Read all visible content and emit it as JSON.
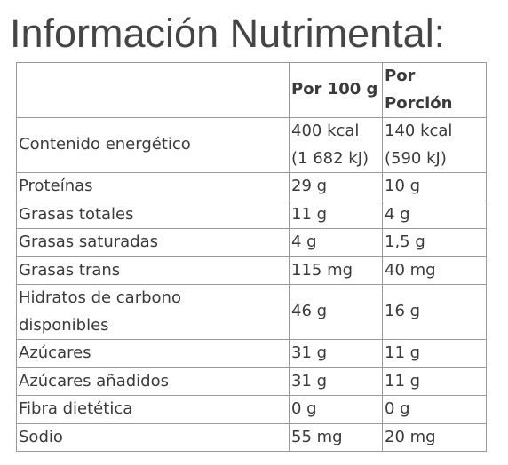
{
  "title": "Información Nutrimental:",
  "table": {
    "header": [
      "Por 100 g",
      [
        "Por",
        "Porción"
      ]
    ],
    "rows": [
      [
        [
          "Contenido energético"
        ],
        [
          "400 kcal",
          "(1 682 kJ)"
        ],
        [
          "140 kcal",
          "(590 kJ)"
        ]
      ],
      [
        [
          "Proteínas"
        ],
        [
          "29 g"
        ],
        [
          "10 g"
        ]
      ],
      [
        [
          "Grasas totales"
        ],
        [
          "11 g"
        ],
        [
          "4 g"
        ]
      ],
      [
        [
          "Grasas saturadas"
        ],
        [
          "4 g"
        ],
        [
          "1,5 g"
        ]
      ],
      [
        [
          "Grasas trans"
        ],
        [
          "115 mg"
        ],
        [
          "40 mg"
        ]
      ],
      [
        [
          "Hidratos de carbono",
          "disponibles"
        ],
        [
          "46 g"
        ],
        [
          "16 g"
        ]
      ],
      [
        [
          "Azúcares"
        ],
        [
          "31 g"
        ],
        [
          "11 g"
        ]
      ],
      [
        [
          "Azúcares añadidos"
        ],
        [
          "31 g"
        ],
        [
          "11 g"
        ]
      ],
      [
        [
          "Fibra dietética"
        ],
        [
          "0 g"
        ],
        [
          "0 g"
        ]
      ],
      [
        [
          "Sodio"
        ],
        [
          "55 mg"
        ],
        [
          "20 mg"
        ]
      ]
    ]
  }
}
